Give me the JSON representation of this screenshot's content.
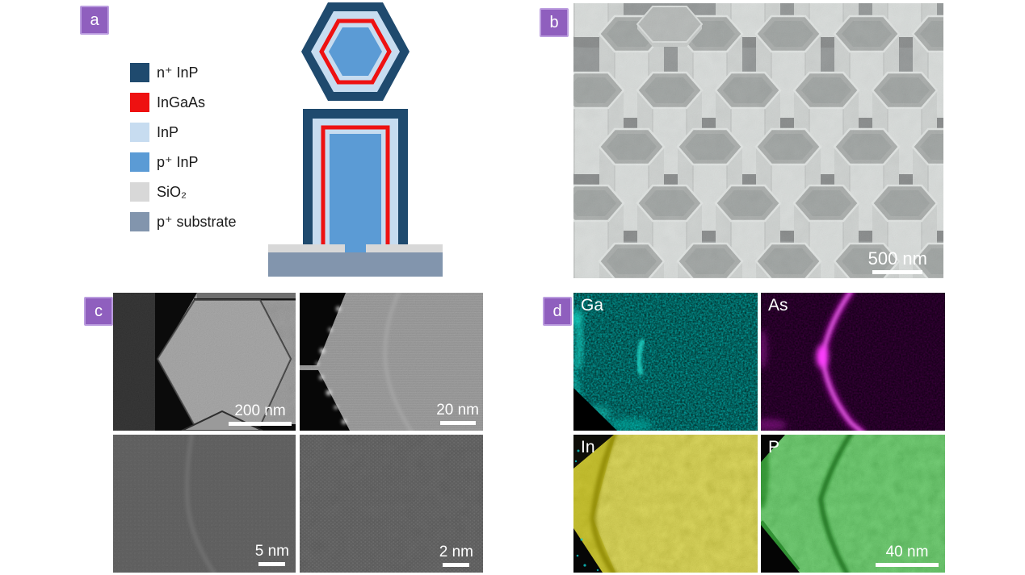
{
  "panels": {
    "a": {
      "label": "a",
      "legend": [
        {
          "label": "n⁺ InP",
          "color": "#1f4a6e"
        },
        {
          "label": "InGaAs",
          "color": "#ee1111"
        },
        {
          "label": "InP",
          "color": "#c7dcf0"
        },
        {
          "label": "p⁺ InP",
          "color": "#5b9bd5"
        },
        {
          "label": "SiO₂",
          "color": "#d8d8d8"
        },
        {
          "label": "p⁺ substrate",
          "color": "#8295ad"
        }
      ]
    },
    "b": {
      "label": "b",
      "scalebar": "500 nm"
    },
    "c": {
      "label": "c",
      "images": [
        {
          "scalebar": "200 nm"
        },
        {
          "scalebar": "20 nm"
        },
        {
          "scalebar": "5 nm"
        },
        {
          "scalebar": "2 nm"
        }
      ]
    },
    "d": {
      "label": "d",
      "maps": [
        {
          "element": "Ga",
          "color": "#10dfd0"
        },
        {
          "element": "As",
          "color": "#f01ef0"
        },
        {
          "element": "In",
          "color": "#e0d800"
        },
        {
          "element": "P",
          "color": "#32c735"
        }
      ],
      "scalebar": "40 nm"
    }
  }
}
